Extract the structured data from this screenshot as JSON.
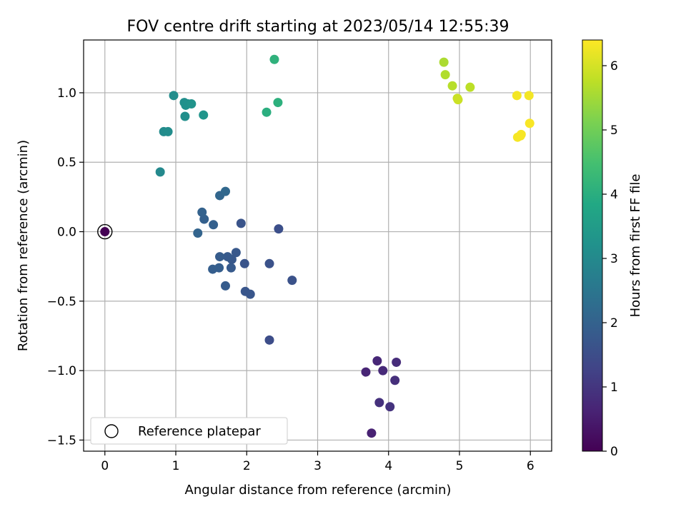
{
  "chart_data": {
    "type": "scatter",
    "title": "FOV centre drift starting at 2023/05/14 12:55:39",
    "xlabel": "Angular distance from reference (arcmin)",
    "ylabel": "Rotation from reference (arcmin)",
    "xlim": [
      -0.3,
      6.3
    ],
    "ylim": [
      -1.58,
      1.38
    ],
    "x_ticks": [
      0,
      1,
      2,
      3,
      4,
      5,
      6
    ],
    "y_ticks": [
      -1.5,
      -1.0,
      -0.5,
      0.0,
      0.5,
      1.0
    ],
    "y_tick_labels": [
      "−1.5",
      "−1.0",
      "−0.5",
      "0.0",
      "0.5",
      "1.0"
    ],
    "grid": true,
    "colormap": "viridis",
    "colorbar": {
      "label": "Hours from first FF file",
      "range": [
        0,
        6.4
      ],
      "ticks": [
        0,
        1,
        2,
        3,
        4,
        5,
        6
      ]
    },
    "reference_point": {
      "x": 0,
      "y": 0,
      "hours": 0,
      "label": "Reference platepar"
    },
    "legend": {
      "position": "lower-left",
      "entries": [
        "Reference platepar"
      ]
    },
    "points": [
      {
        "x": 3.76,
        "y": -1.45,
        "hours": 0.6
      },
      {
        "x": 3.68,
        "y": -1.01,
        "hours": 0.65
      },
      {
        "x": 3.84,
        "y": -0.93,
        "hours": 0.7
      },
      {
        "x": 3.92,
        "y": -1.0,
        "hours": 0.75
      },
      {
        "x": 4.11,
        "y": -0.94,
        "hours": 0.8
      },
      {
        "x": 4.09,
        "y": -1.07,
        "hours": 0.85
      },
      {
        "x": 3.87,
        "y": -1.23,
        "hours": 0.9
      },
      {
        "x": 4.02,
        "y": -1.26,
        "hours": 0.95
      },
      {
        "x": 2.32,
        "y": -0.78,
        "hours": 1.5
      },
      {
        "x": 2.45,
        "y": 0.02,
        "hours": 1.55
      },
      {
        "x": 2.64,
        "y": -0.35,
        "hours": 1.6
      },
      {
        "x": 2.32,
        "y": -0.23,
        "hours": 1.6
      },
      {
        "x": 1.92,
        "y": 0.06,
        "hours": 1.65
      },
      {
        "x": 1.97,
        "y": -0.23,
        "hours": 1.65
      },
      {
        "x": 1.98,
        "y": -0.43,
        "hours": 1.7
      },
      {
        "x": 2.05,
        "y": -0.45,
        "hours": 1.7
      },
      {
        "x": 1.85,
        "y": -0.15,
        "hours": 1.75
      },
      {
        "x": 1.79,
        "y": -0.2,
        "hours": 1.75
      },
      {
        "x": 1.73,
        "y": -0.18,
        "hours": 1.8
      },
      {
        "x": 1.78,
        "y": -0.26,
        "hours": 1.8
      },
      {
        "x": 1.7,
        "y": -0.39,
        "hours": 1.85
      },
      {
        "x": 1.62,
        "y": -0.18,
        "hours": 1.85
      },
      {
        "x": 1.61,
        "y": -0.26,
        "hours": 1.9
      },
      {
        "x": 1.52,
        "y": -0.27,
        "hours": 1.9
      },
      {
        "x": 1.53,
        "y": 0.05,
        "hours": 1.95
      },
      {
        "x": 1.4,
        "y": 0.09,
        "hours": 1.95
      },
      {
        "x": 1.37,
        "y": 0.14,
        "hours": 2.0
      },
      {
        "x": 1.31,
        "y": -0.01,
        "hours": 2.05
      },
      {
        "x": 1.62,
        "y": 0.26,
        "hours": 2.1
      },
      {
        "x": 1.7,
        "y": 0.29,
        "hours": 2.15
      },
      {
        "x": 0.78,
        "y": 0.43,
        "hours": 3.0
      },
      {
        "x": 0.83,
        "y": 0.72,
        "hours": 3.05
      },
      {
        "x": 0.89,
        "y": 0.72,
        "hours": 3.1
      },
      {
        "x": 0.97,
        "y": 0.98,
        "hours": 3.1
      },
      {
        "x": 1.13,
        "y": 0.83,
        "hours": 3.15
      },
      {
        "x": 1.12,
        "y": 0.93,
        "hours": 3.15
      },
      {
        "x": 1.14,
        "y": 0.91,
        "hours": 3.2
      },
      {
        "x": 1.17,
        "y": 0.92,
        "hours": 3.2
      },
      {
        "x": 1.22,
        "y": 0.92,
        "hours": 3.25
      },
      {
        "x": 1.39,
        "y": 0.84,
        "hours": 3.3
      },
      {
        "x": 2.28,
        "y": 0.86,
        "hours": 4.0
      },
      {
        "x": 2.44,
        "y": 0.93,
        "hours": 4.05
      },
      {
        "x": 2.39,
        "y": 1.24,
        "hours": 4.1
      },
      {
        "x": 4.78,
        "y": 1.22,
        "hours": 5.6
      },
      {
        "x": 4.8,
        "y": 1.13,
        "hours": 5.65
      },
      {
        "x": 4.9,
        "y": 1.05,
        "hours": 5.7
      },
      {
        "x": 5.15,
        "y": 1.04,
        "hours": 5.75
      },
      {
        "x": 4.97,
        "y": 0.96,
        "hours": 5.85
      },
      {
        "x": 4.98,
        "y": 0.95,
        "hours": 5.9
      },
      {
        "x": 5.81,
        "y": 0.98,
        "hours": 6.3
      },
      {
        "x": 5.98,
        "y": 0.98,
        "hours": 6.3
      },
      {
        "x": 5.82,
        "y": 0.68,
        "hours": 6.32
      },
      {
        "x": 5.86,
        "y": 0.69,
        "hours": 6.33
      },
      {
        "x": 5.87,
        "y": 0.7,
        "hours": 6.34
      },
      {
        "x": 5.99,
        "y": 0.78,
        "hours": 6.35
      }
    ]
  }
}
